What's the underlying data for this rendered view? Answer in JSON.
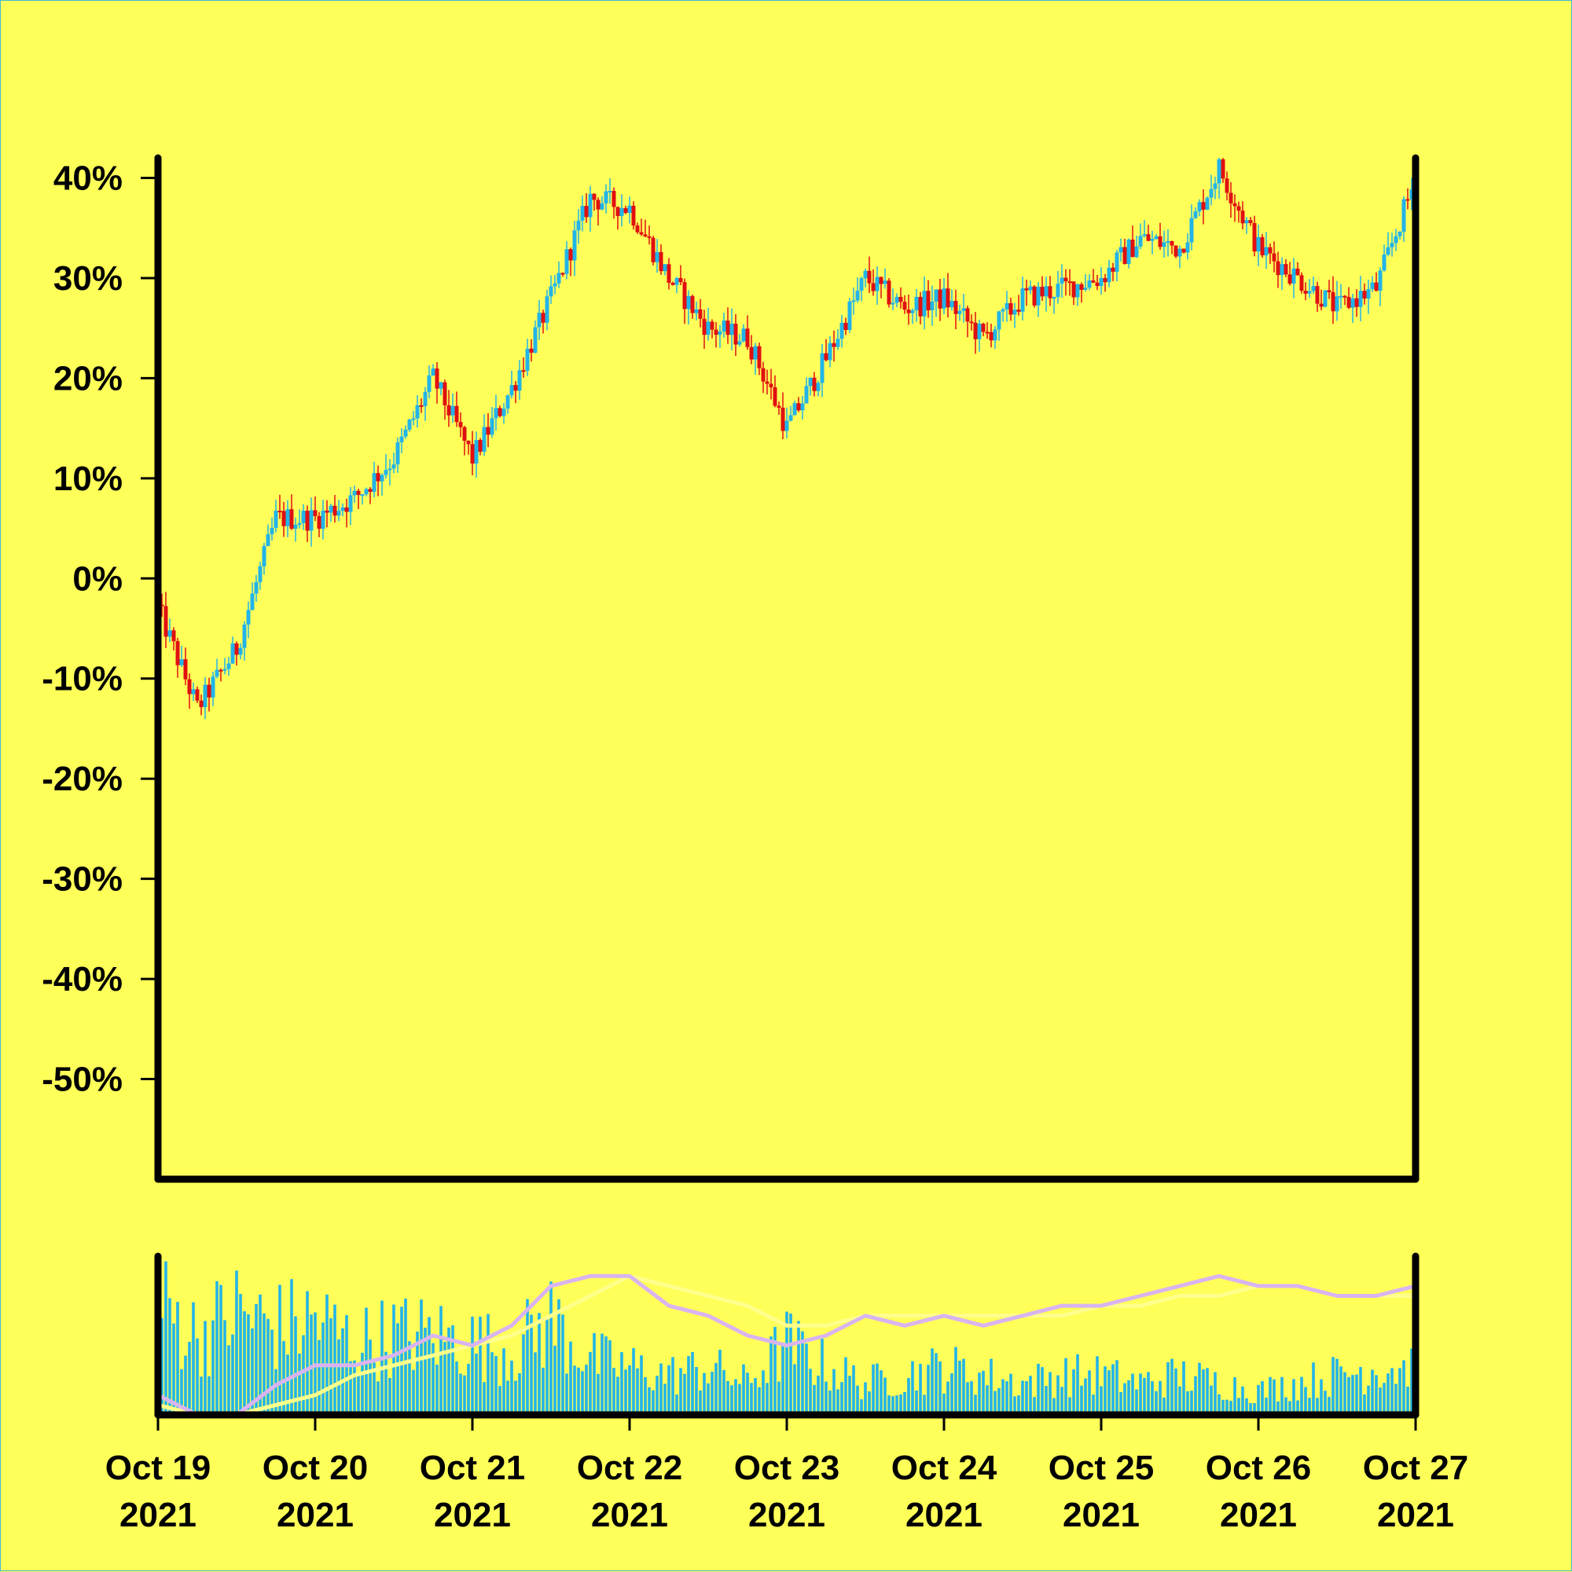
{
  "chart_data": [
    {
      "type": "candlestick",
      "panel": "price",
      "y_unit": "%",
      "ylim": [
        -60,
        42
      ],
      "yticks": [
        -50,
        -40,
        -30,
        -20,
        -10,
        0,
        10,
        20,
        30,
        40
      ],
      "ytick_labels": [
        "-50%",
        "-40%",
        "-30%",
        "-20%",
        "-10%",
        "0%",
        "10%",
        "20%",
        "30%",
        "40%"
      ],
      "xlim": [
        "2021-10-19",
        "2021-10-27"
      ],
      "grid": false,
      "colors": {
        "up": "#22b4e8",
        "down": "#e01010",
        "axis": "#000000",
        "background": "#ffff5a"
      },
      "series": [
        {
          "x": [
            "2021-10-19",
            "2021-10-19 06:00",
            "2021-10-19 12:00",
            "2021-10-19 18:00",
            "2021-10-20",
            "2021-10-20 06:00",
            "2021-10-20 12:00",
            "2021-10-20 18:00",
            "2021-10-21",
            "2021-10-21 06:00",
            "2021-10-21 12:00",
            "2021-10-21 18:00",
            "2021-10-22",
            "2021-10-22 06:00",
            "2021-10-22 12:00",
            "2021-10-22 18:00",
            "2021-10-23",
            "2021-10-23 06:00",
            "2021-10-23 12:00",
            "2021-10-23 18:00",
            "2021-10-24",
            "2021-10-24 06:00",
            "2021-10-24 12:00",
            "2021-10-24 18:00",
            "2021-10-25",
            "2021-10-25 06:00",
            "2021-10-25 12:00",
            "2021-10-25 18:00",
            "2021-10-26",
            "2021-10-26 06:00",
            "2021-10-26 12:00",
            "2021-10-26 18:00",
            "2021-10-27"
          ],
          "close": [
            -3,
            -13,
            -7,
            6,
            6,
            8,
            12,
            20,
            12,
            19,
            28,
            38,
            37,
            30,
            25,
            24,
            15,
            22,
            30,
            27,
            28,
            24,
            28,
            29,
            30,
            34,
            33,
            41,
            33,
            30,
            27,
            29,
            40
          ]
        }
      ]
    },
    {
      "type": "bar",
      "panel": "volume",
      "xlim": [
        "2021-10-19",
        "2021-10-27"
      ],
      "colors": {
        "bars": "#22b4e8",
        "ma_fast": "#d8b4f0",
        "ma_slow": "#ffff8c"
      },
      "volume": [
        14,
        10,
        13,
        11,
        12,
        9,
        10,
        10,
        9,
        8,
        12,
        7,
        6,
        5,
        6,
        4,
        9,
        6,
        4,
        5,
        6,
        5,
        4,
        5,
        5,
        4,
        5,
        4,
        3,
        4,
        5,
        6,
        6
      ],
      "ma_fast": [
        2,
        0,
        0,
        3,
        5,
        5,
        6,
        8,
        7,
        9,
        13,
        14,
        14,
        11,
        10,
        8,
        7,
        8,
        10,
        9,
        10,
        9,
        10,
        11,
        11,
        12,
        13,
        14,
        13,
        13,
        12,
        12,
        13
      ],
      "ma_slow": [
        1,
        0,
        0,
        1,
        2,
        4,
        5,
        6,
        7,
        8,
        10,
        12,
        14,
        13,
        12,
        11,
        9,
        9,
        10,
        10,
        10,
        10,
        10,
        10,
        11,
        11,
        12,
        12,
        13,
        13,
        12,
        12,
        12
      ]
    }
  ],
  "x_axis": {
    "ticks": [
      {
        "line1": "Oct 19",
        "line2": "2021"
      },
      {
        "line1": "Oct 20",
        "line2": "2021"
      },
      {
        "line1": "Oct 21",
        "line2": "2021"
      },
      {
        "line1": "Oct 22",
        "line2": "2021"
      },
      {
        "line1": "Oct 23",
        "line2": "2021"
      },
      {
        "line1": "Oct 24",
        "line2": "2021"
      },
      {
        "line1": "Oct 25",
        "line2": "2021"
      },
      {
        "line1": "Oct 26",
        "line2": "2021"
      },
      {
        "line1": "Oct 27",
        "line2": "2021"
      }
    ]
  }
}
